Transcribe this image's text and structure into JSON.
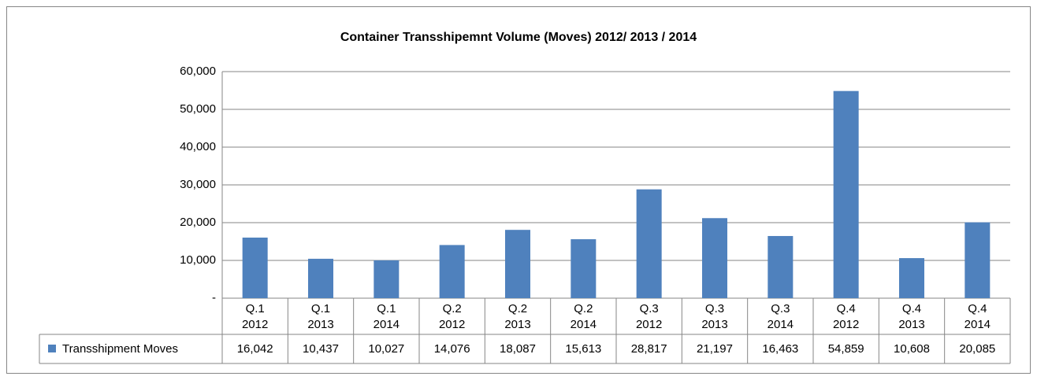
{
  "chart_data": {
    "type": "bar",
    "title": "Container Transshipemnt  Volume (Moves) 2012/ 2013 / 2014",
    "categories": [
      [
        "Q.1",
        "2012"
      ],
      [
        "Q.1",
        "2013"
      ],
      [
        "Q.1",
        "2014"
      ],
      [
        "Q.2",
        "2012"
      ],
      [
        "Q.2",
        "2013"
      ],
      [
        "Q.2",
        "2014"
      ],
      [
        "Q.3",
        "2012"
      ],
      [
        "Q.3",
        "2013"
      ],
      [
        "Q.3",
        "2014"
      ],
      [
        "Q.4",
        "2012"
      ],
      [
        "Q.4",
        "2013"
      ],
      [
        "Q.4",
        "2014"
      ]
    ],
    "series": [
      {
        "name": "Transshipment Moves",
        "color": "#4f81bd",
        "values": [
          16042,
          10437,
          10027,
          14076,
          18087,
          15613,
          28817,
          21197,
          16463,
          54859,
          10608,
          20085
        ],
        "value_labels": [
          "16,042",
          "10,437",
          "10,027",
          "14,076",
          "18,087",
          "15,613",
          "28,817",
          "21,197",
          "16,463",
          "54,859",
          "10,608",
          "20,085"
        ]
      }
    ],
    "ylim": [
      0,
      60000
    ],
    "yticks": [
      {
        "value": 0,
        "label": "-"
      },
      {
        "value": 10000,
        "label": "10,000"
      },
      {
        "value": 20000,
        "label": "20,000"
      },
      {
        "value": 30000,
        "label": "30,000"
      },
      {
        "value": 40000,
        "label": "40,000"
      },
      {
        "value": 50000,
        "label": "50,000"
      },
      {
        "value": 60000,
        "label": "60,000"
      }
    ],
    "grid": true
  }
}
